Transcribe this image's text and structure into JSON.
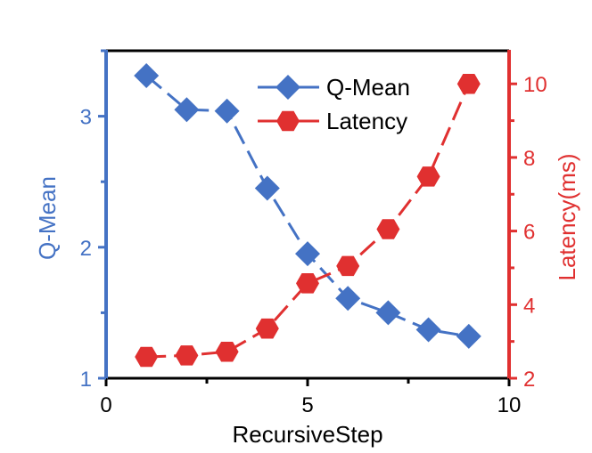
{
  "chart_data": {
    "type": "line",
    "xlabel": "RecursiveStep",
    "xlim": [
      0,
      10
    ],
    "xticks": [
      0,
      5,
      10
    ],
    "x": [
      1,
      2,
      3,
      4,
      5,
      6,
      7,
      8,
      9
    ],
    "legend_position": "top-center",
    "grid": false,
    "y_left": {
      "label": "Q-Mean",
      "lim": [
        1,
        3.5
      ],
      "ticks": [
        1,
        2,
        3
      ],
      "color": "#4472c4"
    },
    "y_right": {
      "label": "Latency(ms)",
      "lim": [
        2,
        10.9
      ],
      "ticks": [
        2,
        4,
        6,
        8,
        10
      ],
      "color": "#e03030"
    },
    "series": [
      {
        "name": "Q-Mean",
        "axis": "left",
        "marker": "diamond",
        "color": "#4472c4",
        "values": [
          3.31,
          3.05,
          3.04,
          2.45,
          1.95,
          1.61,
          1.5,
          1.37,
          1.32
        ]
      },
      {
        "name": "Latency",
        "axis": "right",
        "marker": "hexagon",
        "color": "#e03030",
        "values": [
          2.58,
          2.62,
          2.72,
          3.35,
          4.58,
          5.05,
          6.05,
          7.48,
          10.0
        ]
      }
    ]
  }
}
